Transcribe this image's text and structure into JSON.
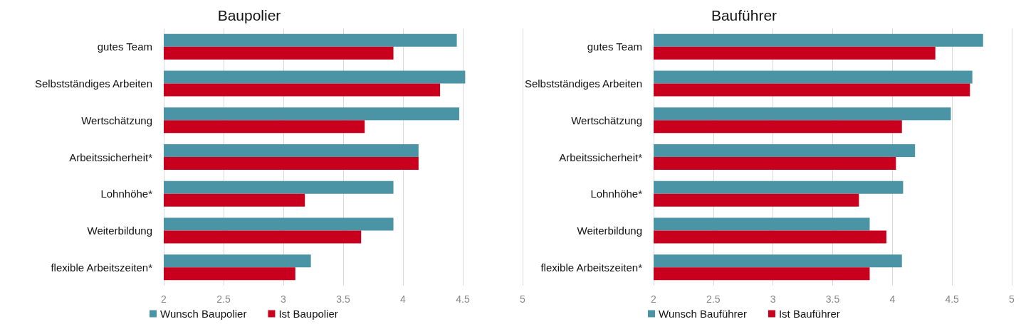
{
  "chart_data": [
    {
      "type": "bar",
      "orientation": "horizontal",
      "title": "Baupolier",
      "categories": [
        "gutes Team",
        "Selbstständiges Arbeiten",
        "Wertschätzung",
        "Arbeitssicherheit*",
        "Lohnhöhe*",
        "Weiterbildung",
        "flexible Arbeitszeiten*"
      ],
      "series": [
        {
          "name": "Wunsch Baupolier",
          "color": "#4a94a6",
          "values": [
            4.45,
            4.52,
            4.47,
            4.13,
            3.92,
            3.92,
            3.23
          ]
        },
        {
          "name": "Ist Baupolier",
          "color": "#c8001e",
          "values": [
            3.92,
            4.31,
            3.68,
            4.13,
            3.18,
            3.65,
            3.1
          ]
        }
      ],
      "xlim": [
        2,
        5
      ],
      "xticks": [
        2,
        2.5,
        3,
        3.5,
        4,
        4.5,
        5
      ],
      "grid": "x",
      "legend": "bottom left"
    },
    {
      "type": "bar",
      "orientation": "horizontal",
      "title": "Bauführer",
      "categories": [
        "gutes Team",
        "Selbstständiges Arbeiten",
        "Wertschätzung",
        "Arbeitssicherheit*",
        "Lohnhöhe*",
        "Weiterbildung",
        "flexible Arbeitszeiten*"
      ],
      "series": [
        {
          "name": "Wunsch Bauführer",
          "color": "#4a94a6",
          "values": [
            4.76,
            4.67,
            4.49,
            4.19,
            4.09,
            3.81,
            4.08
          ]
        },
        {
          "name": "Ist Bauführer",
          "color": "#c8001e",
          "values": [
            4.36,
            4.65,
            4.08,
            4.03,
            3.72,
            3.95,
            3.81
          ]
        }
      ],
      "xlim": [
        2,
        5
      ],
      "xticks": [
        2,
        2.5,
        3,
        3.5,
        4,
        4.5,
        5
      ],
      "grid": "x",
      "legend": "bottom left"
    }
  ]
}
